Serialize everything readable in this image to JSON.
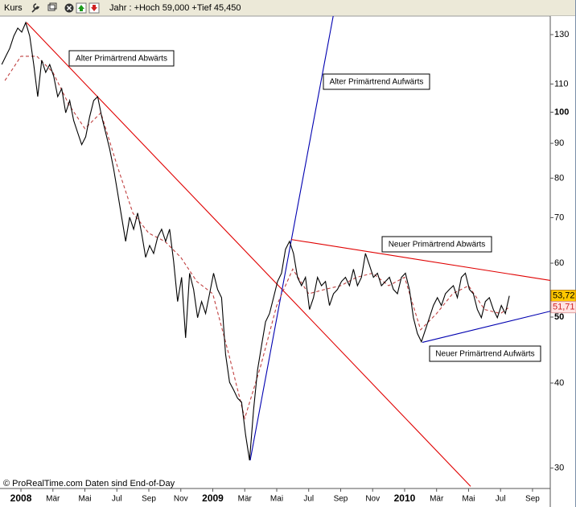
{
  "header": {
    "label": "Kurs",
    "info": "Jahr : +Hoch 59,000 +Tief 45,450"
  },
  "footer": "© ProRealTime.com  Daten sind End-of-Day",
  "chart_data": {
    "type": "line",
    "ylog": true,
    "ylim": [
      28,
      138.4
    ],
    "yticks": [
      30,
      40,
      50,
      60,
      70,
      80,
      90,
      100,
      110,
      130
    ],
    "yticks_bold": [
      50,
      100
    ],
    "xlim": [
      -1.31,
      33.11
    ],
    "xticks": [
      {
        "value": 0,
        "label": "2008",
        "bold": true
      },
      {
        "value": 2,
        "label": "Mär"
      },
      {
        "value": 4,
        "label": "Mai"
      },
      {
        "value": 6,
        "label": "Jul"
      },
      {
        "value": 8,
        "label": "Sep"
      },
      {
        "value": 10,
        "label": "Nov"
      },
      {
        "value": 12,
        "label": "2009",
        "bold": true
      },
      {
        "value": 14,
        "label": "Mär"
      },
      {
        "value": 16,
        "label": "Mai"
      },
      {
        "value": 18,
        "label": "Jul"
      },
      {
        "value": 20,
        "label": "Sep"
      },
      {
        "value": 22,
        "label": "Nov"
      },
      {
        "value": 24,
        "label": "2010",
        "bold": true
      },
      {
        "value": 26,
        "label": "Mär"
      },
      {
        "value": 28,
        "label": "Mai"
      },
      {
        "value": 30,
        "label": "Jul"
      },
      {
        "value": 32,
        "label": "Sep"
      }
    ],
    "series": [
      {
        "color": "#000000",
        "dash": false,
        "last_label": "53,72",
        "label_fill": "#ffc800",
        "x": [
          -1.2,
          -0.95,
          -0.7,
          -0.45,
          -0.2,
          0.05,
          0.3,
          0.55,
          0.8,
          1.05,
          1.3,
          1.55,
          1.8,
          2.05,
          2.3,
          2.55,
          2.8,
          3.05,
          3.3,
          3.55,
          3.8,
          4.05,
          4.3,
          4.55,
          4.8,
          5.05,
          5.3,
          5.55,
          5.8,
          6.05,
          6.3,
          6.55,
          6.8,
          7.05,
          7.3,
          7.55,
          7.8,
          8.05,
          8.3,
          8.55,
          8.8,
          9.05,
          9.3,
          9.55,
          9.8,
          10.05,
          10.3,
          10.55,
          10.8,
          11.05,
          11.3,
          11.55,
          11.8,
          12.05,
          12.3,
          12.55,
          12.8,
          13.05,
          13.3,
          13.55,
          13.8,
          14.05,
          14.3,
          14.55,
          14.8,
          15.05,
          15.3,
          15.55,
          15.8,
          16.05,
          16.3,
          16.55,
          16.8,
          17.05,
          17.3,
          17.55,
          17.8,
          18.05,
          18.3,
          18.55,
          18.8,
          19.05,
          19.3,
          19.55,
          19.8,
          20.05,
          20.3,
          20.55,
          20.8,
          21.05,
          21.3,
          21.55,
          21.8,
          22.05,
          22.3,
          22.55,
          22.8,
          23.05,
          23.3,
          23.55,
          23.8,
          24.05,
          24.3,
          24.55,
          24.8,
          25.05,
          25.3,
          25.55,
          25.8,
          26.05,
          26.3,
          26.55,
          26.8,
          27.05,
          27.3,
          27.55,
          27.8,
          28.05,
          28.3,
          28.55,
          28.8,
          29.05,
          29.3,
          29.55,
          29.8,
          30.05,
          30.3,
          30.55
        ],
        "values": [
          117.5,
          120.8,
          124.1,
          129.3,
          132.9,
          131.1,
          135.4,
          129.3,
          117.5,
          105.4,
          119.2,
          114.4,
          117.5,
          112.9,
          105.4,
          108.3,
          99.8,
          104.0,
          97.2,
          93.3,
          89.6,
          92.0,
          98.5,
          104.0,
          105.4,
          98.5,
          93.3,
          88.3,
          82.5,
          76.1,
          70.1,
          64.6,
          70.1,
          67.3,
          71.1,
          66.4,
          61.2,
          63.7,
          62.0,
          65.5,
          67.3,
          64.6,
          67.3,
          60.4,
          52.7,
          57.2,
          46.6,
          58.0,
          54.9,
          49.9,
          52.7,
          50.6,
          54.1,
          58.0,
          54.9,
          53.4,
          44.1,
          40.1,
          39.1,
          38.0,
          37.5,
          33.6,
          30.8,
          36.5,
          41.8,
          45.4,
          49.2,
          50.6,
          53.4,
          56.4,
          58.0,
          62.9,
          64.6,
          62.0,
          57.2,
          55.6,
          57.2,
          51.3,
          53.4,
          57.2,
          55.6,
          56.4,
          52.0,
          54.1,
          54.9,
          56.4,
          57.2,
          55.6,
          58.8,
          55.6,
          57.2,
          62.0,
          59.6,
          57.2,
          58.0,
          55.6,
          56.4,
          57.2,
          54.9,
          54.1,
          57.2,
          58.0,
          54.9,
          49.9,
          47.3,
          46.0,
          47.9,
          49.9,
          52.0,
          53.4,
          52.0,
          54.1,
          54.9,
          55.6,
          53.4,
          57.2,
          58.0,
          54.9,
          54.1,
          51.3,
          49.9,
          52.7,
          53.4,
          51.3,
          49.9,
          52.0,
          50.6,
          53.72
        ]
      },
      {
        "color": "#c04040",
        "dash": true,
        "last_label": "51,71",
        "label_fill": "#ffe4e4",
        "x": [
          -1,
          0,
          1,
          2,
          3,
          4,
          5,
          6,
          7,
          8,
          9,
          10,
          11,
          12,
          13,
          14,
          15,
          16,
          17,
          18,
          19,
          20,
          21,
          22,
          23,
          24,
          25,
          26,
          27,
          28,
          29,
          30,
          30.55
        ],
        "values": [
          111.3,
          120.8,
          120.8,
          114.4,
          102.6,
          94.6,
          99.8,
          83.7,
          71.1,
          66.4,
          64.6,
          61.2,
          56.4,
          54.1,
          44.1,
          35.5,
          42.4,
          52.0,
          58.8,
          54.1,
          54.9,
          55.6,
          57.2,
          58.0,
          55.6,
          57.2,
          47.9,
          50.6,
          54.1,
          55.6,
          51.3,
          50.6,
          51.71
        ]
      }
    ],
    "trendlines": [
      {
        "label": "Alter Primärtrend Abwärts",
        "color": "#e00000",
        "x": [
          0.35,
          28.13
        ],
        "values": [
          135.4,
          28.2
        ]
      },
      {
        "label": "Alter Primärtrend Aufwärts",
        "color": "#0000b0",
        "x": [
          14.34,
          19.72
        ],
        "values": [
          30.8,
          146.1
        ]
      },
      {
        "label": "Neuer Primärtrend Abwärts",
        "color": "#e00000",
        "x": [
          16.91,
          33.11
        ],
        "values": [
          65.0,
          56.6
        ]
      },
      {
        "label": "Neuer Primärtrend Aufwärts",
        "color": "#0000b0",
        "x": [
          25.11,
          33.11
        ],
        "values": [
          45.9,
          51.0
        ]
      }
    ]
  }
}
